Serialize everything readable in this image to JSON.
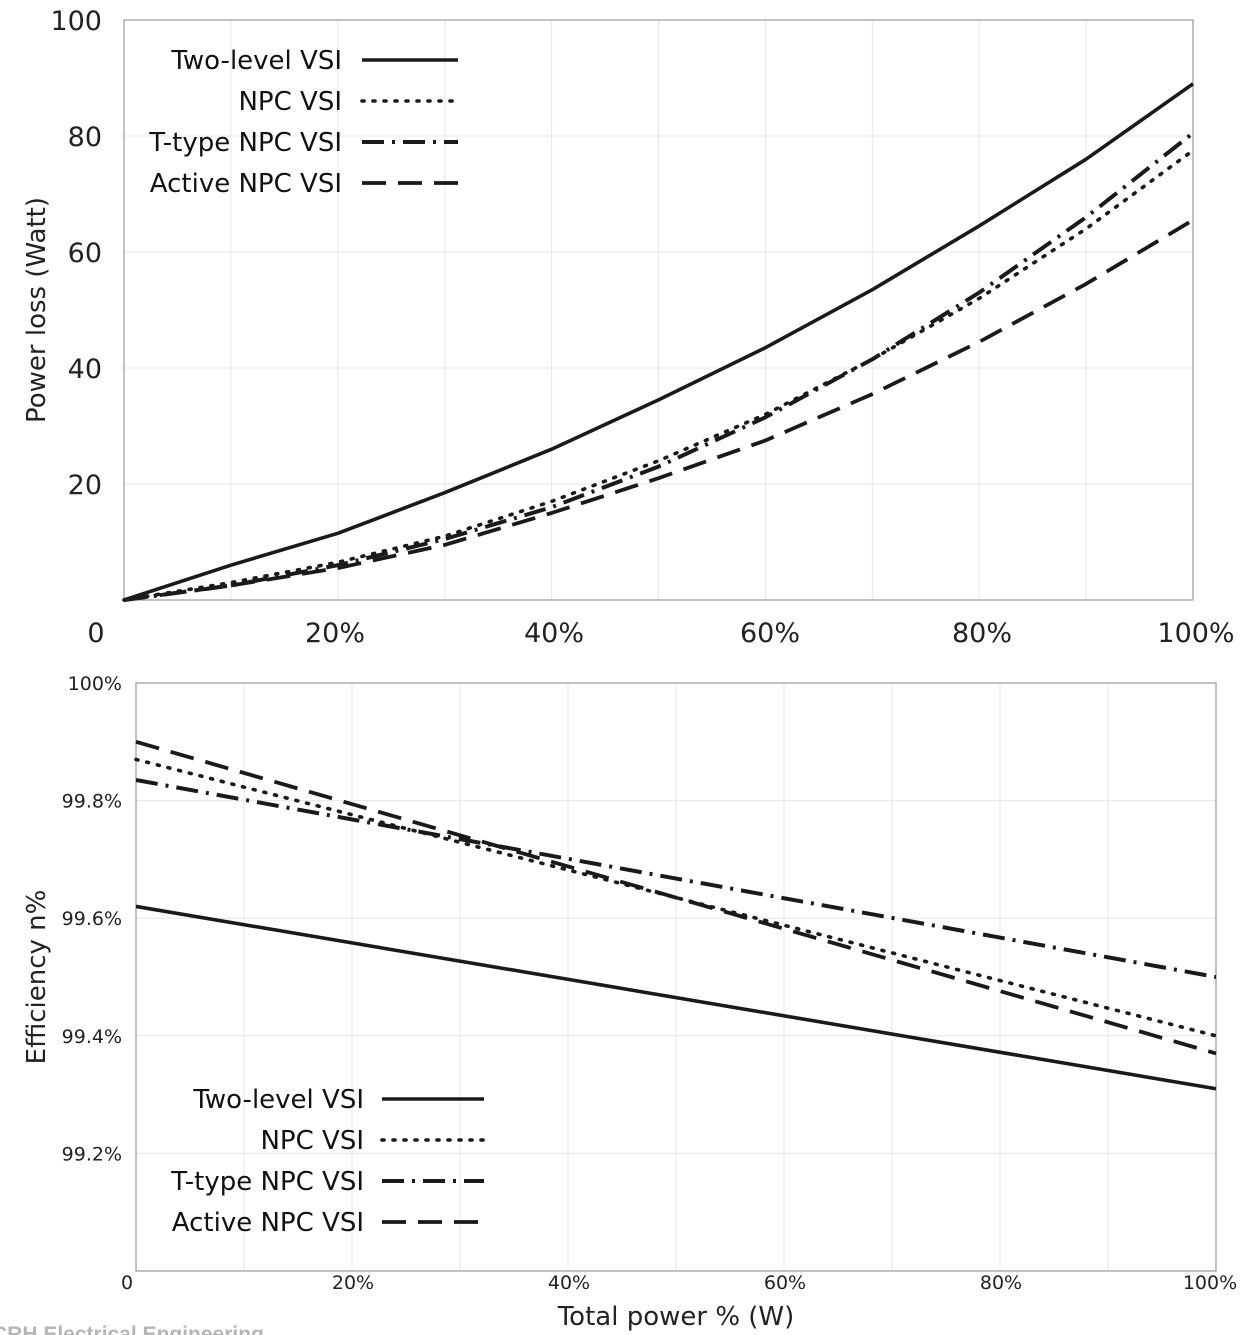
{
  "chart_data": [
    {
      "type": "line",
      "title": "",
      "ylabel": "Power loss (Watt)",
      "xlabel": "",
      "xlim": [
        0,
        100
      ],
      "ylim": [
        0,
        100
      ],
      "x_ticks": [
        "0",
        "20%",
        "40%",
        "60%",
        "80%",
        "100%"
      ],
      "y_ticks": [
        "20",
        "40",
        "60",
        "80",
        "100"
      ],
      "grid": true,
      "legend_position": "top-left",
      "series": [
        {
          "name": "Two-level VSI",
          "style": "solid",
          "x": [
            0,
            10,
            20,
            30,
            40,
            50,
            60,
            70,
            80,
            90,
            100
          ],
          "y": [
            0,
            6,
            11.5,
            18.5,
            26,
            34.5,
            43.5,
            53.5,
            64.5,
            76,
            89
          ]
        },
        {
          "name": "NPC VSI",
          "style": "dotted",
          "x": [
            0,
            10,
            20,
            30,
            40,
            50,
            60,
            70,
            80,
            90,
            100
          ],
          "y": [
            0,
            3,
            6.5,
            11,
            17,
            24,
            32,
            41.5,
            52,
            64,
            77.5
          ]
        },
        {
          "name": "T-type NPC VSI",
          "style": "dashdot",
          "x": [
            0,
            10,
            20,
            30,
            40,
            50,
            60,
            70,
            80,
            90,
            100
          ],
          "y": [
            0,
            2.5,
            6,
            10.5,
            16,
            23,
            31.5,
            41.5,
            53,
            66,
            80.5
          ]
        },
        {
          "name": "Active NPC VSI",
          "style": "dashed",
          "x": [
            0,
            10,
            20,
            30,
            40,
            50,
            60,
            70,
            80,
            90,
            100
          ],
          "y": [
            0,
            2.5,
            5.5,
            9.5,
            15,
            21,
            27.5,
            35.5,
            44.5,
            54.5,
            65.5
          ]
        }
      ]
    },
    {
      "type": "line",
      "title": "",
      "ylabel": "Efficiency n%",
      "xlabel": "Total power % (W)",
      "xlim": [
        0,
        100
      ],
      "ylim": [
        99.0,
        100.0
      ],
      "x_ticks": [
        "0",
        "20%",
        "40%",
        "60%",
        "80%",
        "100%"
      ],
      "y_ticks": [
        "99.2%",
        "99.4%",
        "99.6%",
        "99.8%",
        "100%"
      ],
      "grid": true,
      "legend_position": "bottom-left",
      "series": [
        {
          "name": "Two-level VSI",
          "style": "solid",
          "x": [
            0,
            100
          ],
          "y": [
            99.62,
            99.31
          ]
        },
        {
          "name": "NPC VSI",
          "style": "dotted",
          "x": [
            0,
            100
          ],
          "y": [
            99.87,
            99.4
          ]
        },
        {
          "name": "T-type NPC VSI",
          "style": "dashdot",
          "x": [
            0,
            100
          ],
          "y": [
            99.835,
            99.5
          ]
        },
        {
          "name": "Active NPC VSI",
          "style": "dashed",
          "x": [
            0,
            100
          ],
          "y": [
            99.9,
            99.37
          ]
        }
      ]
    }
  ],
  "watermark": "CRH Electrical Engineering"
}
